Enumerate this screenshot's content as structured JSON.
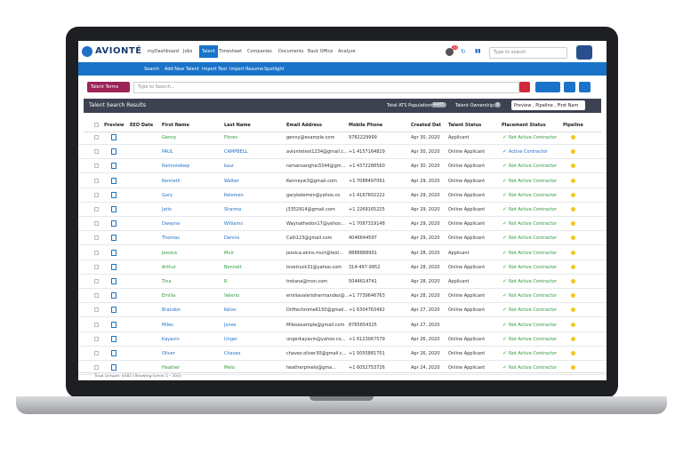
{
  "nav": {
    "logo": "AVIONTÉ",
    "menu": [
      "myDashboard",
      "Jobs",
      "Talent",
      "Timesheet",
      "Companies",
      "Documents",
      "Back Office",
      "Analyze"
    ],
    "badge": "20",
    "search_placeholder": "Type to search"
  },
  "subnav": [
    "Search",
    "Add New Talent",
    "Import Text",
    "Import Resume",
    "Spotlight"
  ],
  "search": {
    "terms_button": "Talent Terms",
    "placeholder": "Type to Search..."
  },
  "results": {
    "title": "Talent Search Results",
    "population_label": "Total ATS Population:",
    "population": "4485",
    "ownership_label": "Talent Ownership:",
    "ownership": "0",
    "columns_dropdown": "Preview , Pipeline , First Nam"
  },
  "table": {
    "headers": [
      "Preview",
      "EEO Date",
      "First Name",
      "Last Name",
      "Email Address",
      "Mobile Phone",
      "Created Dat",
      "Talent Status",
      "Placement Status",
      "Pipeline"
    ],
    "rows": [
      {
        "cells": [
          "Genny",
          "Flores",
          "genny@example.com",
          "9782229999",
          "Apr 30, 2020",
          "Applicant",
          "Not Active Contractor"
        ],
        "name_color": "#2e9a3a",
        "placement_color": "#2e9a3a"
      },
      {
        "cells": [
          "PAUL",
          "CAMPBELL",
          "aviontetest1234@gmail.c...",
          "+1 4157164829",
          "Apr 30, 2020",
          "Online Applicant",
          "Active Contractor"
        ],
        "name_color": "#1f6fc5",
        "placement_color": "#1f6fc5"
      },
      {
        "cells": [
          "Raimondeep",
          "kaur",
          "ramansanghai3344@gm...",
          "+1 4372288560",
          "Apr 30, 2020",
          "Online Applicant",
          "Not Active Contractor"
        ],
        "name_color": "#1f6fc5",
        "placement_color": "#2e9a3a"
      },
      {
        "cells": [
          "Kenneth",
          "Walker",
          "Kenneyw3@gmail.com",
          "+1 7088497091",
          "Apr 29, 2020",
          "Online Applicant",
          "Not Active Contractor"
        ],
        "name_color": "#1f6fc5",
        "placement_color": "#2e9a3a"
      },
      {
        "cells": [
          "Gary",
          "Kelemen",
          "garykelemen@yahoo.co",
          "+1 4167602222",
          "Apr 29, 2020",
          "Online Applicant",
          "Not Active Contractor"
        ],
        "name_color": "#1f6fc5",
        "placement_color": "#2e9a3a"
      },
      {
        "cells": [
          "Jatin",
          "Sharma",
          "j3352914@gmail.com",
          "+1 2269165225",
          "Apr 29, 2020",
          "Online Applicant",
          "Not Active Contractor"
        ],
        "name_color": "#1f6fc5",
        "placement_color": "#2e9a3a"
      },
      {
        "cells": [
          "Dwayne",
          "Williams",
          "Waynathedon17@yahoo...",
          "+1 7087319148",
          "Apr 29, 2020",
          "Online Applicant",
          "Not Active Contractor"
        ],
        "name_color": "#1f6fc5",
        "placement_color": "#2e9a3a"
      },
      {
        "cells": [
          "Thomas",
          "Dennis",
          "Calli123@gmail.com",
          "4046644597",
          "Apr 29, 2020",
          "Online Applicant",
          "Not Active Contractor"
        ],
        "name_color": "#1f6fc5",
        "placement_color": "#2e9a3a"
      },
      {
        "cells": [
          "Jessica",
          "Muir",
          "jessica.ekins.muir@test...",
          "8888888991",
          "Apr 28, 2020",
          "Applicant",
          "Not Active Contractor"
        ],
        "name_color": "#2e9a3a",
        "placement_color": "#2e9a3a"
      },
      {
        "cells": [
          "Arthur",
          "Bennett",
          "lovetruck31@yahoo.com",
          "314-497-9952",
          "Apr 28, 2020",
          "Online Applicant",
          "Not Active Contractor"
        ],
        "name_color": "#2e9a3a",
        "placement_color": "#2e9a3a"
      },
      {
        "cells": [
          "Tina",
          "R",
          "tretana@msn.com",
          "5044614741",
          "Apr 28, 2020",
          "Applicant",
          "Not Active Contractor"
        ],
        "name_color": "#2e9a3a",
        "placement_color": "#2e9a3a"
      },
      {
        "cells": [
          "Emilia",
          "Valerio",
          "emiliavalerioherrnandez@...",
          "+1 7739646763",
          "Apr 28, 2020",
          "Online Applicant",
          "Not Active Contractor"
        ],
        "name_color": "#2e9a3a",
        "placement_color": "#2e9a3a"
      },
      {
        "cells": [
          "Brandon",
          "Kelso",
          "Driftechrome6150@gmail...",
          "+1 6304763492",
          "Apr 27, 2020",
          "Online Applicant",
          "Not Active Contractor"
        ],
        "name_color": "#1f6fc5",
        "placement_color": "#2e9a3a"
      },
      {
        "cells": [
          "Miles",
          "Jones",
          "Milesexample@gmail.com",
          "8765654325",
          "Apr 27, 2020",
          "",
          "Not Active Contractor"
        ],
        "name_color": "#1f6fc5",
        "placement_color": "#2e9a3a"
      },
      {
        "cells": [
          "Kayavin",
          "Unger",
          "ungerkayavin@yahoo.co...",
          "+1 6123067579",
          "Apr 26, 2020",
          "Online Applicant",
          "Not Active Contractor"
        ],
        "name_color": "#1f6fc5",
        "placement_color": "#2e9a3a"
      },
      {
        "cells": [
          "Oliver",
          "Chavez",
          "chavez.oliver30@gmail.c...",
          "+1 5055881701",
          "Apr 26, 2020",
          "Online Applicant",
          "Not Active Contractor"
        ],
        "name_color": "#1f6fc5",
        "placement_color": "#2e9a3a"
      },
      {
        "cells": [
          "Heather",
          "Melo",
          "heatherpmelo@gma...",
          "+1 6052753726",
          "Apr 24, 2020",
          "Online Applicant",
          "Not Active Contractor"
        ],
        "name_color": "#2e9a3a",
        "placement_color": "#2e9a3a"
      }
    ],
    "footer": "Total Unique: 4485 (Showing Items 1 - 500)"
  }
}
